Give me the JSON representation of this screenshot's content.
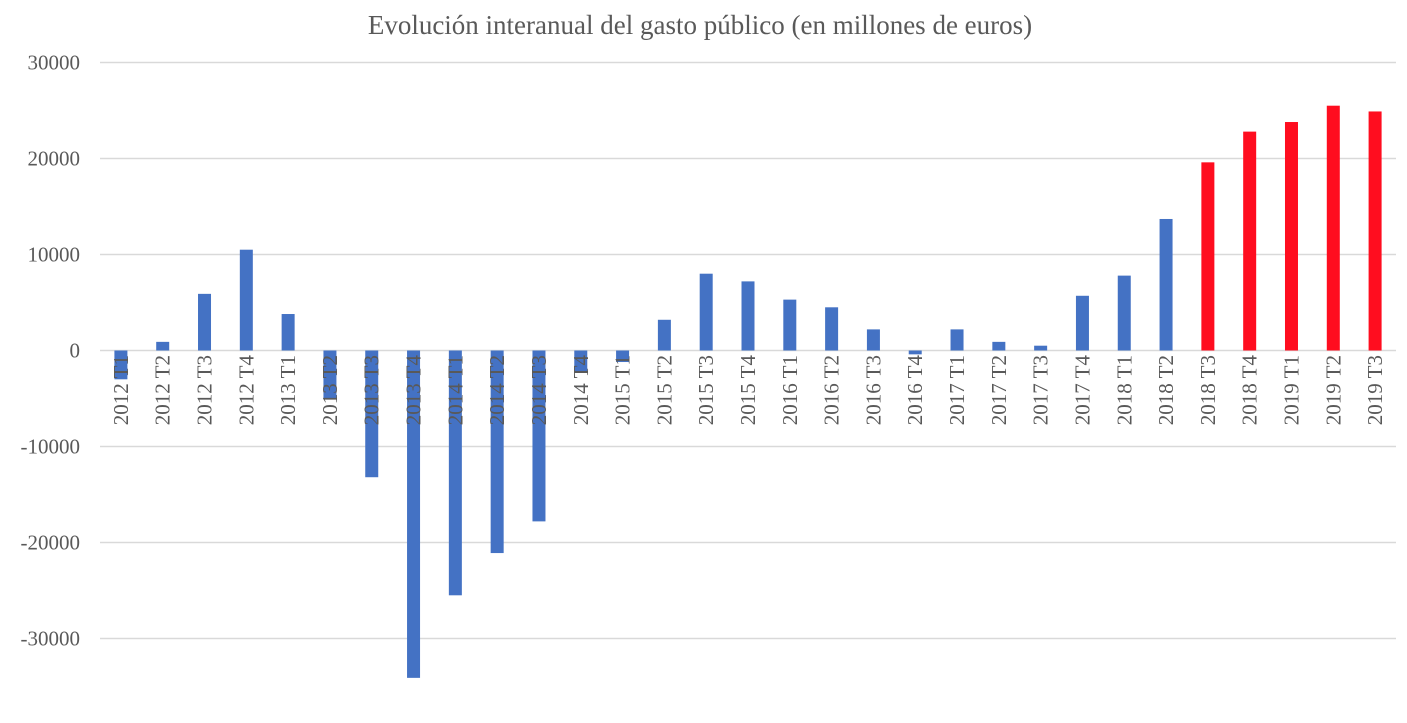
{
  "chart_data": {
    "type": "bar",
    "title": "Evolución interanual del gasto público (en millones de euros)",
    "xlabel": "",
    "ylabel": "",
    "ylim": [
      -30000,
      30000
    ],
    "yticks": [
      30000,
      20000,
      10000,
      0,
      -10000,
      -20000,
      -30000
    ],
    "grid": true,
    "legend": "none",
    "colors": {
      "default": "#4472C4",
      "highlight": "#FF0D1F",
      "grid": "#D9D9D9",
      "text": "#595959"
    },
    "categories": [
      "2012 T1",
      "2012 T2",
      "2012 T3",
      "2012 T4",
      "2013 T1",
      "2013 T2",
      "2013 T3",
      "2013 T4",
      "2014 T1",
      "2014 T2",
      "2014 T3",
      "2014 T4",
      "2015 T1",
      "2015 T2",
      "2015 T3",
      "2015 T4",
      "2016 T1",
      "2016 T2",
      "2016 T3",
      "2016 T4",
      "2017 T1",
      "2017 T2",
      "2017 T3",
      "2017 T4",
      "2018 T1",
      "2018 T2",
      "2018 T3",
      "2018 T4",
      "2019 T1",
      "2019 T2",
      "2019 T3"
    ],
    "values": [
      -3000,
      900,
      5900,
      10500,
      3800,
      -5100,
      -13200,
      -34100,
      -25500,
      -21100,
      -17800,
      -2200,
      -1200,
      3200,
      8000,
      7200,
      5300,
      4500,
      2200,
      -400,
      2200,
      900,
      500,
      5700,
      7800,
      13700,
      19600,
      22800,
      23800,
      25500,
      24900
    ],
    "highlighted_from": "2018 T3"
  }
}
